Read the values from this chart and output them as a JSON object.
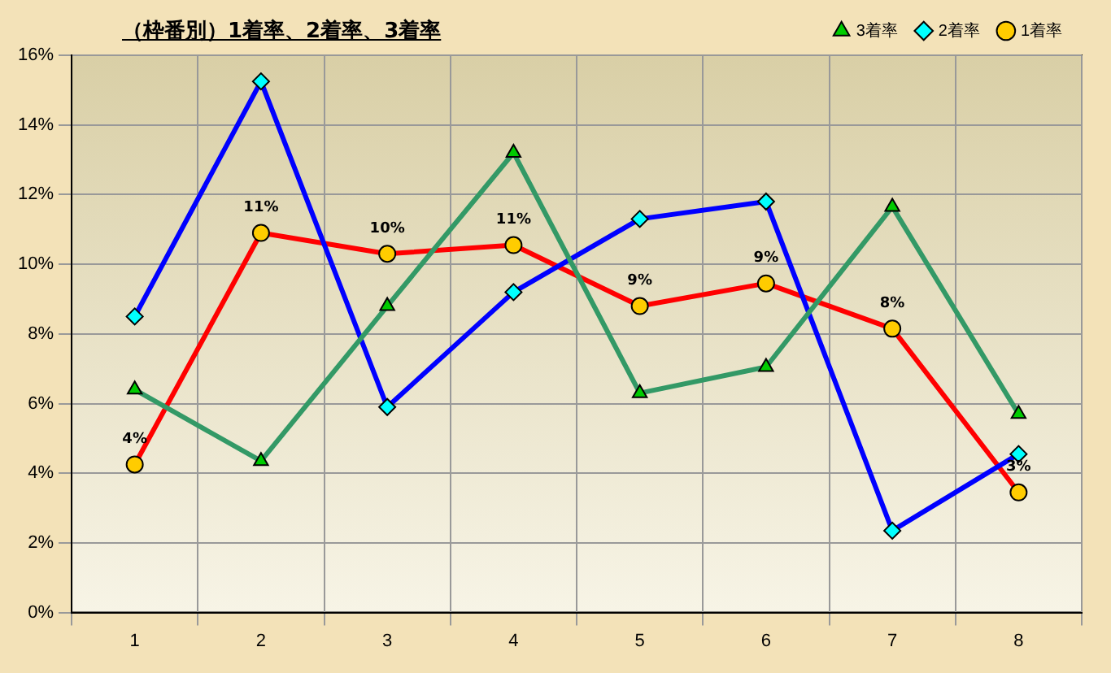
{
  "chart_data": {
    "type": "line",
    "title": "（枠番別）1着率、2着率、3着率",
    "categories": [
      "1",
      "2",
      "3",
      "4",
      "5",
      "6",
      "7",
      "8"
    ],
    "series": [
      {
        "name": "3着率",
        "color": "#339966",
        "marker": "triangle",
        "values": [
          6.4,
          4.35,
          8.8,
          13.2,
          6.3,
          7.05,
          11.65,
          5.7
        ]
      },
      {
        "name": "2着率",
        "color": "#0000ff",
        "marker": "diamond",
        "values": [
          8.5,
          15.25,
          5.9,
          9.2,
          11.3,
          11.8,
          2.35,
          4.55
        ]
      },
      {
        "name": "1着率",
        "color": "#ff0000",
        "marker": "circle",
        "values": [
          4.25,
          10.9,
          10.3,
          10.55,
          8.8,
          9.45,
          8.15,
          3.45
        ],
        "value_labels": [
          "4%",
          "11%",
          "10%",
          "11%",
          "9%",
          "9%",
          "8%",
          "3%"
        ]
      }
    ],
    "ylim": [
      0,
      16
    ],
    "yticks": [
      {
        "value": 0,
        "label": "0%"
      },
      {
        "value": 2,
        "label": "2%"
      },
      {
        "value": 4,
        "label": "4%"
      },
      {
        "value": 6,
        "label": "6%"
      },
      {
        "value": 8,
        "label": "8%"
      },
      {
        "value": 10,
        "label": "10%"
      },
      {
        "value": 12,
        "label": "12%"
      },
      {
        "value": 14,
        "label": "14%"
      },
      {
        "value": 16,
        "label": "16%"
      }
    ],
    "grid": true,
    "legend": "top right",
    "line_style": "solid"
  }
}
